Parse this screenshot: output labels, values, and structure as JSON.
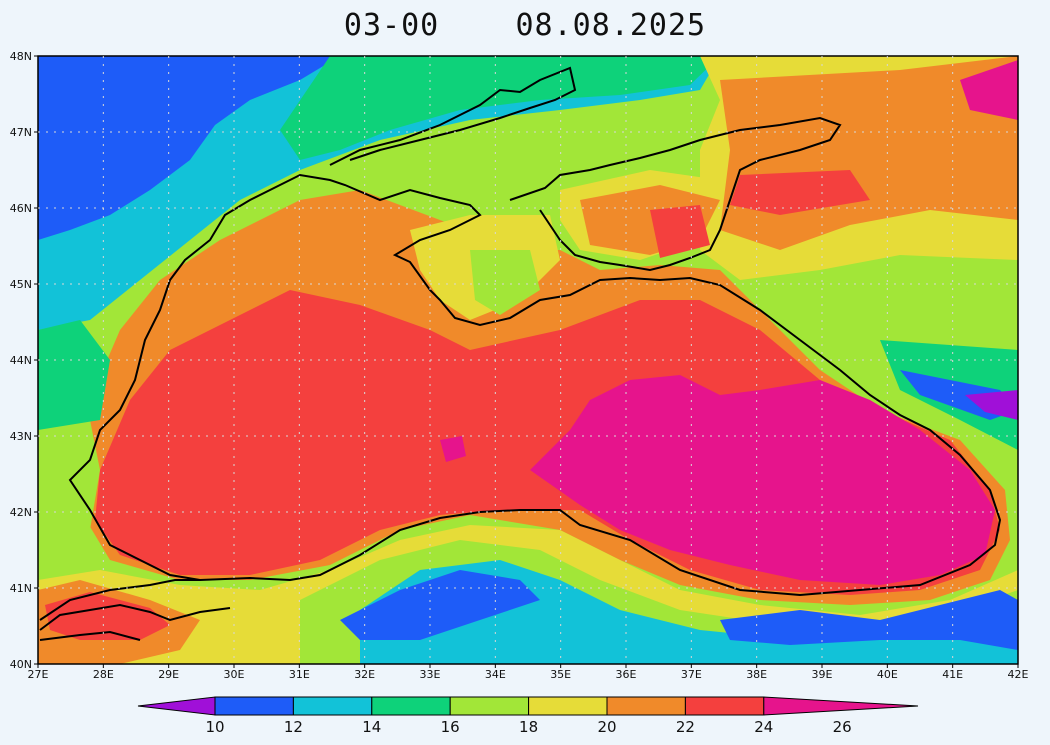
{
  "title": {
    "time": "03-00",
    "date": "08.08.2025"
  },
  "axes": {
    "lon_labels": [
      "27E",
      "28E",
      "29E",
      "30E",
      "31E",
      "32E",
      "33E",
      "34E",
      "35E",
      "36E",
      "37E",
      "38E",
      "39E",
      "40E",
      "41E",
      "42E"
    ],
    "lat_labels": [
      "40N",
      "41N",
      "42N",
      "43N",
      "44N",
      "45N",
      "46N",
      "47N",
      "48N"
    ],
    "lon_range": [
      27,
      42
    ],
    "lat_range": [
      40,
      48
    ],
    "grid": "dotted"
  },
  "colorbar": {
    "levels": [
      10,
      12,
      14,
      16,
      18,
      20,
      22,
      24,
      26
    ],
    "colors": [
      "#a010d8",
      "#1e5cf8",
      "#12c2d8",
      "#0ed27a",
      "#a2e638",
      "#e6dc38",
      "#f08a2a",
      "#f4403e",
      "#e6148c"
    ],
    "labels": [
      "10",
      "12",
      "14",
      "16",
      "18",
      "20",
      "22",
      "24",
      "26"
    ]
  },
  "field_colors": {
    "bg": "#1e5cf8",
    "deep_cold": "#a010d8",
    "land_bg": "#12c2d8"
  }
}
